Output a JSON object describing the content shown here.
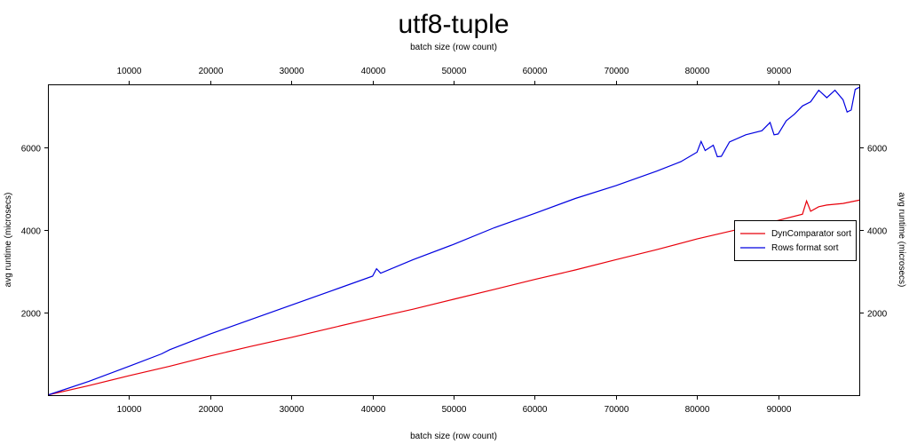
{
  "chart_data": {
    "type": "line",
    "title": "utf8-tuple",
    "xlabel": "batch size (row count)",
    "ylabel": "avg runtime (microsecs)",
    "xlim": [
      100,
      100000
    ],
    "ylim": [
      0,
      7500
    ],
    "x_ticks": [
      10000,
      20000,
      30000,
      40000,
      50000,
      60000,
      70000,
      80000,
      90000
    ],
    "y_ticks": [
      2000,
      4000,
      6000
    ],
    "legend_position": "right",
    "grid": false,
    "series": [
      {
        "name": "DynComparator sort",
        "color": "#e8000b",
        "x": [
          100,
          5000,
          10000,
          15000,
          20000,
          25000,
          30000,
          35000,
          40000,
          45000,
          50000,
          55000,
          60000,
          65000,
          70000,
          75000,
          80000,
          85000,
          90000,
          93000,
          93500,
          94000,
          95000,
          96000,
          98000,
          100000
        ],
        "y": [
          10,
          230,
          470,
          700,
          950,
          1180,
          1400,
          1630,
          1860,
          2080,
          2320,
          2560,
          2800,
          3030,
          3280,
          3520,
          3780,
          4010,
          4230,
          4380,
          4700,
          4450,
          4560,
          4600,
          4640,
          4720
        ]
      },
      {
        "name": "Rows format sort",
        "color": "#0000e0",
        "x": [
          100,
          5000,
          10000,
          14000,
          15000,
          20000,
          25000,
          30000,
          35000,
          40000,
          40500,
          41000,
          45000,
          50000,
          55000,
          60000,
          65000,
          70000,
          75000,
          78000,
          80000,
          80500,
          81000,
          82000,
          82500,
          83000,
          84000,
          86000,
          88000,
          89000,
          89500,
          90000,
          91000,
          92000,
          93000,
          94000,
          95000,
          96000,
          97000,
          98000,
          98500,
          99000,
          99500,
          100000
        ],
        "y": [
          10,
          330,
          700,
          1000,
          1100,
          1480,
          1830,
          2180,
          2530,
          2880,
          3060,
          2950,
          3280,
          3650,
          4050,
          4400,
          4760,
          5070,
          5420,
          5650,
          5880,
          6140,
          5920,
          6050,
          5770,
          5780,
          6130,
          6300,
          6400,
          6600,
          6300,
          6320,
          6640,
          6800,
          7000,
          7100,
          7380,
          7200,
          7380,
          7150,
          6850,
          6900,
          7400,
          7450
        ]
      }
    ]
  }
}
